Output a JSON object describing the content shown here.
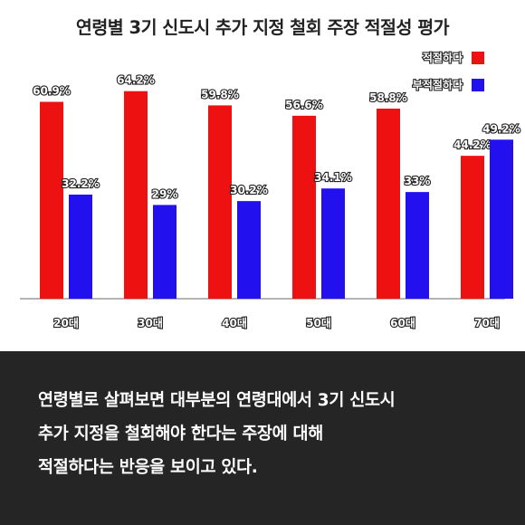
{
  "chart_data": {
    "type": "bar",
    "title": "연령별 3기 신도시 추가 지정 철회 주장 적절성 평가",
    "categories": [
      "20대",
      "30대",
      "40대",
      "50대",
      "60대",
      "70대"
    ],
    "series": [
      {
        "name": "적절하다",
        "color": "#ee1111",
        "values": [
          60.9,
          64.2,
          59.8,
          56.6,
          58.8,
          44.2
        ],
        "labels": [
          "60.9%",
          "64.2%",
          "59.8%",
          "56.6%",
          "58.8%",
          "44.2%"
        ]
      },
      {
        "name": "부적절하다",
        "color": "#2211ee",
        "values": [
          32.2,
          29,
          30.2,
          34.1,
          33,
          49.2
        ],
        "labels": [
          "32.2%",
          "29%",
          "30.2%",
          "34.1%",
          "33%",
          "49.2%"
        ]
      }
    ],
    "ylim": [
      0,
      70
    ],
    "grid": false,
    "legend_position": "top-right",
    "axis_color": "#888888"
  },
  "caption": {
    "lines": [
      "연령별로 살펴보면 대부분의 연령대에서 3기 신도시",
      "추가 지정을 철회해야 한다는 주장에 대해",
      "적절하다는 반응을 보이고 있다."
    ]
  }
}
